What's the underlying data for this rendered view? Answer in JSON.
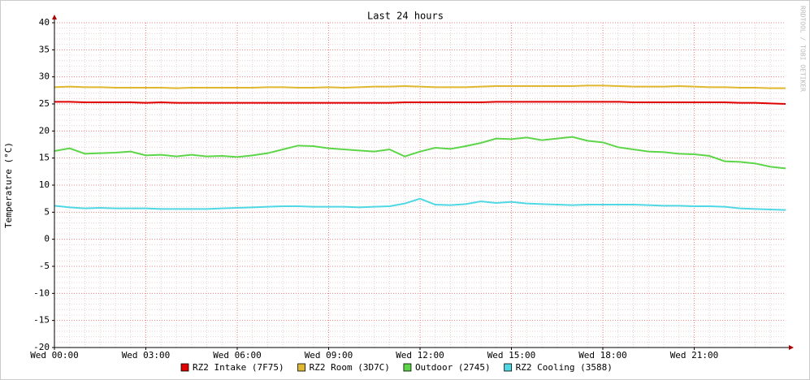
{
  "chart_data": {
    "type": "line",
    "title": "Last 24 hours",
    "y_label": "Temperature (°C)",
    "watermark": "RRDTOOL / TOBI OETIKER",
    "x": [
      0,
      0.5,
      1,
      1.5,
      2,
      2.5,
      3,
      3.5,
      4,
      4.5,
      5,
      5.5,
      6,
      6.5,
      7,
      7.5,
      8,
      8.5,
      9,
      9.5,
      10,
      10.5,
      11,
      11.5,
      12,
      12.5,
      13,
      13.5,
      14,
      14.5,
      15,
      15.5,
      16,
      16.5,
      17,
      17.5,
      18,
      18.5,
      19,
      19.5,
      20,
      20.5,
      21,
      21.5,
      22,
      22.5,
      23,
      23.5,
      24
    ],
    "xlim": [
      0,
      24
    ],
    "xticks": [
      {
        "value": 0,
        "label": "Wed 00:00"
      },
      {
        "value": 3,
        "label": "Wed 03:00"
      },
      {
        "value": 6,
        "label": "Wed 06:00"
      },
      {
        "value": 9,
        "label": "Wed 09:00"
      },
      {
        "value": 12,
        "label": "Wed 12:00"
      },
      {
        "value": 15,
        "label": "Wed 15:00"
      },
      {
        "value": 18,
        "label": "Wed 18:00"
      },
      {
        "value": 21,
        "label": "Wed 21:00"
      }
    ],
    "ylim": [
      -20,
      40
    ],
    "yticks": [
      -20,
      -15,
      -10,
      -5,
      0,
      5,
      10,
      15,
      20,
      25,
      30,
      35,
      40
    ],
    "grid": true,
    "series": [
      {
        "name": "RZ2 Intake (7F75)",
        "color": "#e00000",
        "values": [
          25.4,
          25.4,
          25.3,
          25.3,
          25.3,
          25.3,
          25.2,
          25.3,
          25.2,
          25.2,
          25.2,
          25.2,
          25.2,
          25.2,
          25.2,
          25.2,
          25.2,
          25.2,
          25.2,
          25.2,
          25.2,
          25.2,
          25.2,
          25.3,
          25.3,
          25.3,
          25.3,
          25.3,
          25.3,
          25.4,
          25.4,
          25.4,
          25.4,
          25.4,
          25.4,
          25.4,
          25.4,
          25.4,
          25.3,
          25.3,
          25.3,
          25.3,
          25.3,
          25.3,
          25.3,
          25.2,
          25.2,
          25.1,
          25.0
        ]
      },
      {
        "name": "RZ2 Room (3D7C)",
        "color": "#e0b830",
        "values": [
          28.1,
          28.2,
          28.1,
          28.1,
          28.0,
          28.0,
          28.0,
          28.0,
          27.9,
          28.0,
          28.0,
          28.0,
          28.0,
          28.0,
          28.1,
          28.1,
          28.0,
          28.0,
          28.1,
          28.0,
          28.1,
          28.2,
          28.2,
          28.3,
          28.2,
          28.1,
          28.1,
          28.1,
          28.2,
          28.3,
          28.3,
          28.3,
          28.3,
          28.3,
          28.3,
          28.4,
          28.4,
          28.3,
          28.2,
          28.2,
          28.2,
          28.3,
          28.2,
          28.1,
          28.1,
          28.0,
          28.0,
          27.9,
          27.9
        ]
      },
      {
        "name": "Outdoor (2745)",
        "color": "#5cd648",
        "values": [
          16.3,
          16.8,
          15.8,
          15.9,
          16.0,
          16.2,
          15.5,
          15.6,
          15.3,
          15.6,
          15.3,
          15.4,
          15.2,
          15.5,
          15.9,
          16.6,
          17.3,
          17.2,
          16.8,
          16.6,
          16.4,
          16.2,
          16.6,
          15.3,
          16.2,
          16.9,
          16.7,
          17.2,
          17.8,
          18.6,
          18.5,
          18.8,
          18.3,
          18.6,
          18.9,
          18.2,
          17.9,
          17.0,
          16.6,
          16.2,
          16.1,
          15.8,
          15.7,
          15.4,
          14.4,
          14.3,
          14.0,
          13.4,
          13.1
        ]
      },
      {
        "name": "RZ2 Cooling (3588)",
        "color": "#4fd8e4",
        "values": [
          6.2,
          5.9,
          5.7,
          5.8,
          5.7,
          5.7,
          5.7,
          5.6,
          5.6,
          5.6,
          5.6,
          5.7,
          5.8,
          5.9,
          6.0,
          6.1,
          6.1,
          6.0,
          6.0,
          6.0,
          5.9,
          6.0,
          6.1,
          6.6,
          7.5,
          6.4,
          6.3,
          6.5,
          7.0,
          6.7,
          6.9,
          6.6,
          6.5,
          6.4,
          6.3,
          6.4,
          6.4,
          6.4,
          6.4,
          6.3,
          6.2,
          6.2,
          6.1,
          6.1,
          6.0,
          5.7,
          5.6,
          5.5,
          5.4
        ]
      }
    ]
  }
}
